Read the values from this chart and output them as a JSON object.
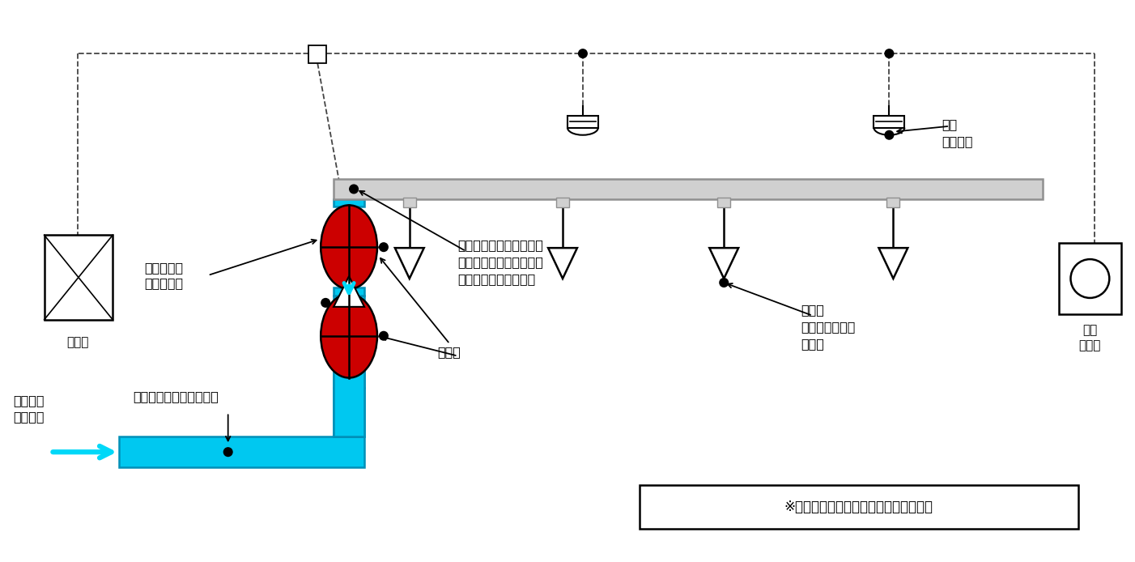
{
  "bg_color": "#ffffff",
  "pipe_color": "#00c8f0",
  "pipe_edge_color": "#0090b8",
  "gray_pipe_color": "#d0d0d0",
  "gray_pipe_edge": "#909090",
  "valve_red": "#cc0000",
  "valve_gold": "#c8902a",
  "dashed_color": "#444444",
  "text_color": "#000000",
  "cyan_arrow": "#00d8f8",
  "labels": {
    "seigyoban": "制御盤",
    "isseikaihoen": "一斉開放弁\n（加圧開）",
    "kakusuimitsari": "加圧水で満たされている",
    "kasousuisou": "加圧送水\n装置より",
    "joshiki": "常時大気圧になっており\n作動時にすべてのヘッド\nから一斉に放水される",
    "shikiben": "仕切弁",
    "hosuitype": "放水型\nスプリンクラー\nヘッド",
    "kasaichi": "火災\n感知器等",
    "genchisouban": "現地\n操作盤",
    "note": "※感知器が作動しない限り放水しない。"
  }
}
